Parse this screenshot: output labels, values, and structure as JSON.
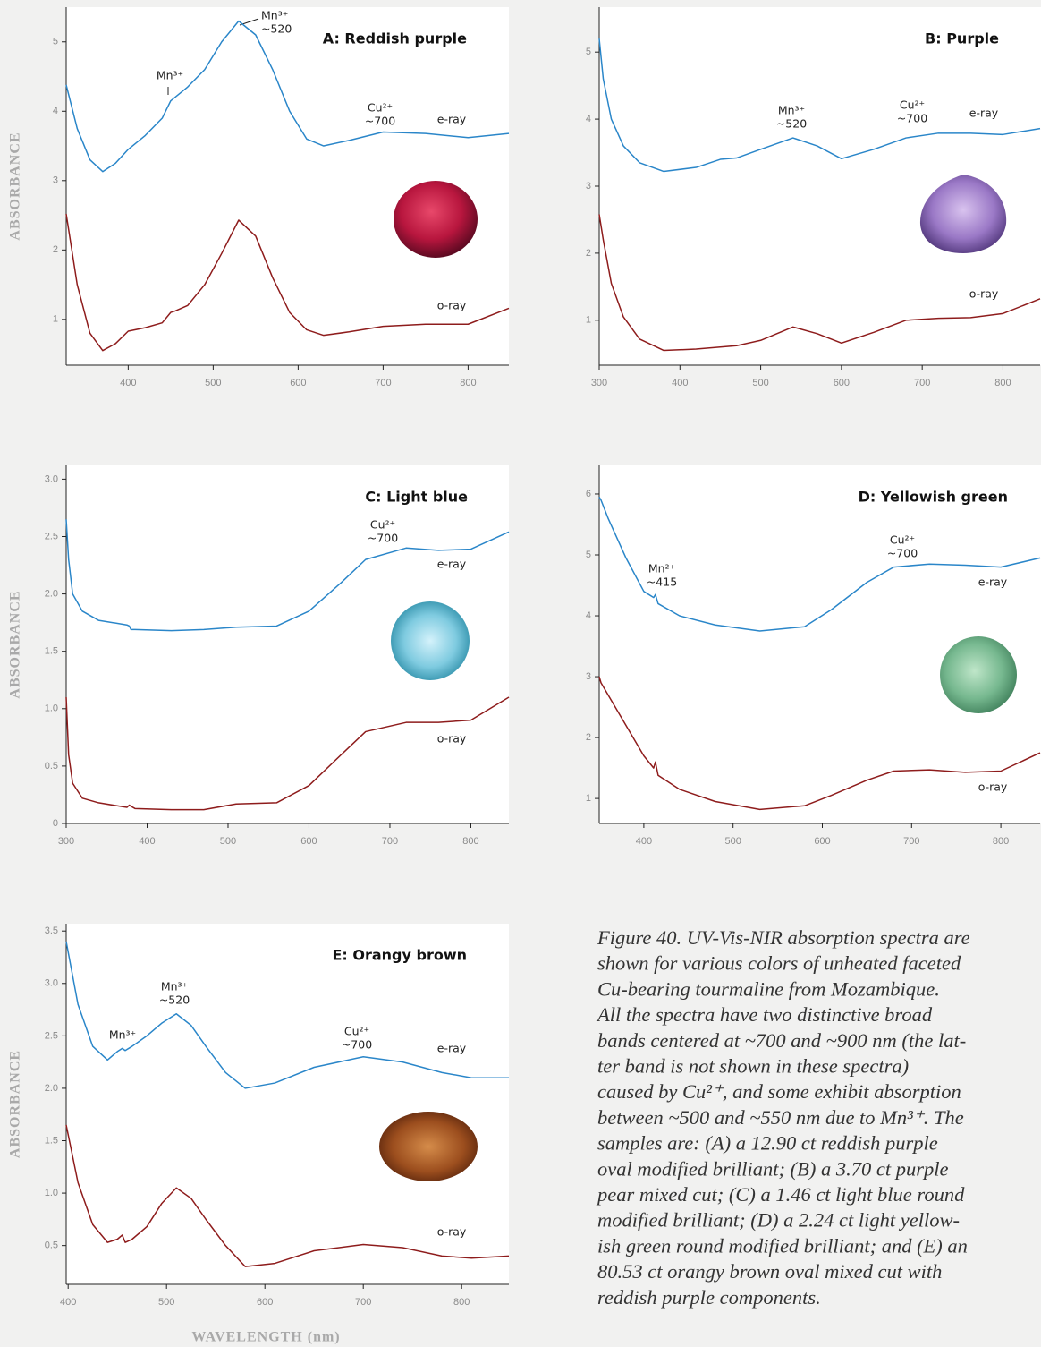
{
  "chart_data": [
    {
      "type": "line",
      "title": "A: Reddish purple",
      "ylabel": "ABSORBANCE",
      "xlim": [
        327,
        848
      ],
      "xticks": [
        400,
        500,
        600,
        700,
        800
      ],
      "ylim": [
        0.34,
        5.5
      ],
      "yticks": [
        1,
        2,
        3,
        4,
        5
      ],
      "annotations": [
        [
          "Mn³⁺"
        ],
        [
          "Mn³⁺",
          "~520"
        ],
        [
          "Cu²⁺",
          "~700"
        ]
      ],
      "x": [
        327,
        340,
        355,
        370,
        385,
        400,
        420,
        440,
        450,
        455,
        470,
        490,
        510,
        530,
        550,
        570,
        590,
        610,
        630,
        660,
        700,
        750,
        800,
        848
      ],
      "series": [
        {
          "name": "e-ray",
          "color": "#2a86c9",
          "values": [
            4.38,
            3.75,
            3.3,
            3.13,
            3.25,
            3.45,
            3.65,
            3.9,
            4.15,
            4.2,
            4.35,
            4.6,
            5.0,
            5.3,
            5.1,
            4.6,
            4.0,
            3.6,
            3.5,
            3.58,
            3.7,
            3.68,
            3.62,
            3.68
          ]
        },
        {
          "name": "o-ray",
          "color": "#8e1c1c",
          "values": [
            2.52,
            1.5,
            0.8,
            0.55,
            0.65,
            0.83,
            0.88,
            0.95,
            1.1,
            1.12,
            1.2,
            1.5,
            1.95,
            2.43,
            2.2,
            1.6,
            1.1,
            0.85,
            0.77,
            0.82,
            0.9,
            0.93,
            0.93,
            1.16
          ]
        }
      ]
    },
    {
      "type": "line",
      "title": "B: Purple",
      "xlim": [
        300,
        846
      ],
      "xticks": [
        300,
        400,
        500,
        600,
        700,
        800
      ],
      "ylim": [
        0.33,
        5.67
      ],
      "yticks": [
        1,
        2,
        3,
        4,
        5
      ],
      "annotations": [
        [
          "Mn³⁺",
          "~520"
        ],
        [
          "Cu²⁺",
          "~700"
        ]
      ],
      "x": [
        300,
        305,
        315,
        330,
        350,
        380,
        420,
        450,
        470,
        500,
        540,
        570,
        600,
        640,
        680,
        720,
        760,
        800,
        846
      ],
      "series": [
        {
          "name": "e-ray",
          "color": "#2a86c9",
          "values": [
            5.2,
            4.6,
            4.0,
            3.6,
            3.35,
            3.22,
            3.28,
            3.4,
            3.42,
            3.55,
            3.72,
            3.6,
            3.41,
            3.55,
            3.72,
            3.79,
            3.79,
            3.77,
            3.86
          ]
        },
        {
          "name": "o-ray",
          "color": "#8e1c1c",
          "values": [
            2.58,
            2.2,
            1.55,
            1.05,
            0.72,
            0.55,
            0.57,
            0.6,
            0.62,
            0.7,
            0.9,
            0.8,
            0.66,
            0.82,
            1.0,
            1.03,
            1.04,
            1.1,
            1.32
          ]
        }
      ]
    },
    {
      "type": "line",
      "title": "C: Light blue",
      "ylabel": "ABSORBANCE",
      "xlim": [
        300,
        847
      ],
      "xticks": [
        300,
        400,
        500,
        600,
        700,
        800
      ],
      "ylim": [
        0,
        3.12
      ],
      "yticks": [
        0,
        0.5,
        {
          "value": 1,
          "label": "1.0"
        },
        1.5,
        {
          "value": 2,
          "label": "2.0"
        },
        2.5,
        {
          "value": 3,
          "label": "3.0"
        }
      ],
      "annotations": [
        [
          "Cu²⁺",
          "~700"
        ]
      ],
      "x": [
        300,
        303,
        308,
        320,
        340,
        375,
        378,
        380,
        385,
        430,
        470,
        510,
        560,
        600,
        640,
        670,
        720,
        760,
        800,
        847
      ],
      "series": [
        {
          "name": "e-ray",
          "color": "#2a86c9",
          "values": [
            2.65,
            2.3,
            2.0,
            1.85,
            1.77,
            1.73,
            1.72,
            1.69,
            1.69,
            1.68,
            1.69,
            1.71,
            1.72,
            1.85,
            2.1,
            2.3,
            2.4,
            2.38,
            2.39,
            2.54
          ]
        },
        {
          "name": "o-ray",
          "color": "#8e1c1c",
          "values": [
            1.1,
            0.6,
            0.35,
            0.22,
            0.18,
            0.14,
            0.16,
            0.15,
            0.13,
            0.12,
            0.12,
            0.17,
            0.18,
            0.33,
            0.6,
            0.8,
            0.88,
            0.88,
            0.9,
            1.1
          ]
        }
      ]
    },
    {
      "type": "line",
      "title": "D: Yellowish green",
      "xlim": [
        350,
        844
      ],
      "xticks": [
        400,
        500,
        600,
        700,
        800
      ],
      "ylim": [
        0.59,
        6.47
      ],
      "yticks": [
        1,
        2,
        3,
        4,
        5,
        6
      ],
      "annotations": [
        [
          "Mn²⁺",
          "~415"
        ],
        [
          "Cu²⁺",
          "~700"
        ]
      ],
      "x": [
        350,
        352,
        360,
        380,
        400,
        411,
        413,
        416,
        440,
        480,
        530,
        580,
        610,
        650,
        680,
        720,
        760,
        800,
        844
      ],
      "series": [
        {
          "name": "e-ray",
          "color": "#2a86c9",
          "values": [
            5.95,
            5.9,
            5.6,
            4.95,
            4.4,
            4.3,
            4.35,
            4.2,
            4.0,
            3.85,
            3.75,
            3.82,
            4.1,
            4.55,
            4.8,
            4.85,
            4.83,
            4.8,
            4.95
          ]
        },
        {
          "name": "o-ray",
          "color": "#8e1c1c",
          "values": [
            3.0,
            2.9,
            2.7,
            2.2,
            1.7,
            1.5,
            1.6,
            1.38,
            1.15,
            0.95,
            0.82,
            0.88,
            1.05,
            1.3,
            1.45,
            1.47,
            1.43,
            1.45,
            1.75
          ]
        }
      ]
    },
    {
      "type": "line",
      "title": "E: Orangy brown",
      "ylabel": "ABSORBANCE",
      "xlabel": "WAVELENGTH (nm)",
      "xlim": [
        398,
        848
      ],
      "xticks": [
        400,
        500,
        600,
        700,
        800
      ],
      "ylim": [
        0.13,
        3.57
      ],
      "yticks": [
        0.5,
        {
          "value": 1,
          "label": "1.0"
        },
        1.5,
        {
          "value": 2,
          "label": "2.0"
        },
        2.5,
        {
          "value": 3,
          "label": "3.0"
        },
        3.5
      ],
      "annotations": [
        [
          "Mn³⁺"
        ],
        [
          "Mn³⁺",
          "~520"
        ],
        [
          "Cu²⁺",
          "~700"
        ]
      ],
      "x": [
        398,
        410,
        425,
        440,
        450,
        455,
        458,
        465,
        480,
        495,
        510,
        525,
        540,
        560,
        580,
        610,
        650,
        700,
        740,
        780,
        810,
        848
      ],
      "series": [
        {
          "name": "e-ray",
          "color": "#2a86c9",
          "values": [
            3.4,
            2.8,
            2.4,
            2.27,
            2.35,
            2.38,
            2.36,
            2.4,
            2.5,
            2.62,
            2.71,
            2.6,
            2.4,
            2.15,
            2.0,
            2.05,
            2.2,
            2.3,
            2.25,
            2.15,
            2.1,
            2.1
          ]
        },
        {
          "name": "o-ray",
          "color": "#8e1c1c",
          "values": [
            1.65,
            1.1,
            0.7,
            0.53,
            0.56,
            0.6,
            0.53,
            0.56,
            0.68,
            0.9,
            1.05,
            0.95,
            0.75,
            0.5,
            0.3,
            0.33,
            0.45,
            0.51,
            0.48,
            0.4,
            0.38,
            0.4
          ]
        }
      ]
    }
  ],
  "caption": [
    "Figure 40. UV-Vis-NIR absorption spectra are",
    "shown for various colors of unheated faceted",
    "Cu-bearing tourmaline from Mozambique.",
    "All the spectra have two distinctive broad",
    "bands centered at ~700 and ~900 nm (the lat-",
    "ter band is not shown in these spectra)",
    "caused by Cu²⁺, and some exhibit absorption",
    "between ~500 and ~550 nm due to Mn³⁺. The",
    "samples are: (A) a 12.90 ct reddish purple",
    "oval modified brilliant; (B) a 3.70 ct purple",
    "pear mixed cut; (C) a 1.46 ct light blue round",
    "modified brilliant; (D) a 2.24 ct light yellow-",
    "ish green round modified brilliant; and (E) an",
    "80.53 ct orangy brown oval mixed cut with",
    "reddish purple components."
  ]
}
